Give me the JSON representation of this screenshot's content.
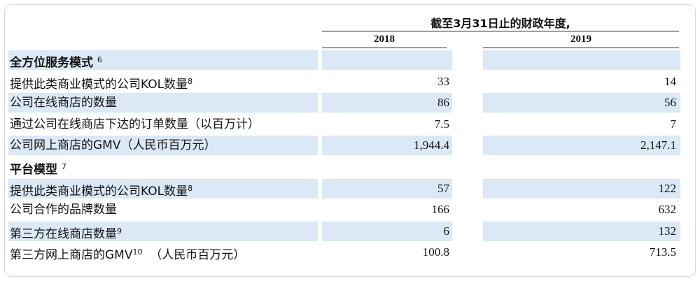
{
  "header": {
    "period_title": "截至3月31日止的财政年度,",
    "years": [
      "2018",
      "2019"
    ]
  },
  "sections": [
    {
      "title": "全方位服务模式",
      "note": "6",
      "rows": [
        {
          "label": "提供此类商业模式的公司KOL数量",
          "note": "8",
          "v2018": "33",
          "v2019": "14"
        },
        {
          "label": "公司在线商店的数量",
          "note": "",
          "v2018": "86",
          "v2019": "56"
        },
        {
          "label": "通过公司在线商店下达的订单数量（以百万计）",
          "note": "",
          "v2018": "7.5",
          "v2019": "7"
        },
        {
          "label": "公司网上商店的GMV（人民币百万元）",
          "note": "",
          "v2018": "1,944.4",
          "v2019": "2,147.1"
        }
      ]
    },
    {
      "title": "平台模型",
      "note": "7",
      "rows": [
        {
          "label": "提供此类商业模式的公司KOL数量",
          "note": "8",
          "v2018": "57",
          "v2019": "122"
        },
        {
          "label": "公司合作的品牌数量",
          "note": "",
          "v2018": "166",
          "v2019": "632"
        },
        {
          "label": "第三方在线商店数量",
          "note": "9",
          "v2018": "6",
          "v2019": "132"
        },
        {
          "label": "第三方网上商店的GMV",
          "note": "10",
          "label_suffix": "（人民币百万元）",
          "v2018": "100.8",
          "v2019": "713.5"
        }
      ]
    }
  ]
}
